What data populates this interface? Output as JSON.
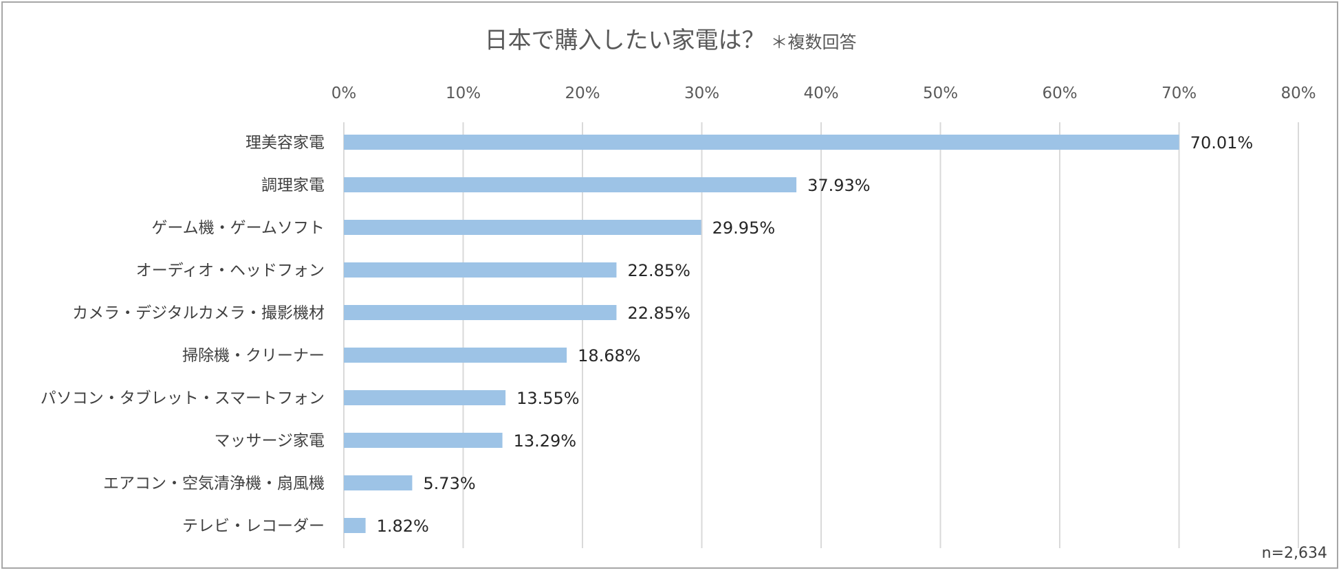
{
  "chart_data": {
    "type": "bar",
    "orientation": "horizontal",
    "title": "日本で購入したい家電は？",
    "subtitle": "＊複数回答",
    "note": "n=2,634",
    "xlim": [
      0,
      80
    ],
    "xticks": [
      0,
      10,
      20,
      30,
      40,
      50,
      60,
      70,
      80
    ],
    "tick_suffix": "%",
    "grid": true,
    "bar_color": "#9dc3e6",
    "categories": [
      "理美容家電",
      "調理家電",
      "ゲーム機・ゲームソフト",
      "オーディオ・ヘッドフォン",
      "カメラ・デジタルカメラ・撮影機材",
      "掃除機・クリーナー",
      "パソコン・タブレット・スマートフォン",
      "マッサージ家電",
      "エアコン・空気清浄機・扇風機",
      "テレビ・レコーダー"
    ],
    "values": [
      70.01,
      37.93,
      29.95,
      22.85,
      22.85,
      18.68,
      13.55,
      13.29,
      5.73,
      1.82
    ],
    "value_labels": [
      "70.01%",
      "37.93%",
      "29.95%",
      "22.85%",
      "22.85%",
      "18.68%",
      "13.55%",
      "13.29%",
      "5.73%",
      "1.82%"
    ]
  }
}
